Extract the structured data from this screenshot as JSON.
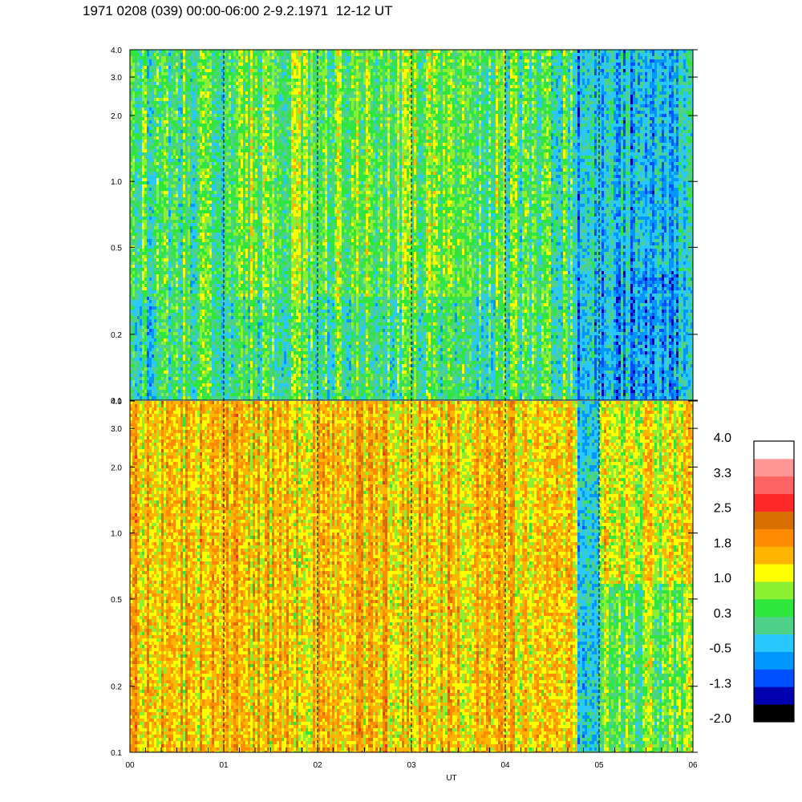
{
  "title": "1971 0208 (039) 00:00-06:00 2-9.2.1971  12-12 UT",
  "chart_data": [
    {
      "type": "heatmap",
      "panel": "top",
      "y_scale": "log",
      "ylim": [
        0.1,
        4.0
      ],
      "yticks": [
        "0.1",
        "0.2",
        "0.5",
        "1.0",
        "2.0",
        "3.0",
        "4.0"
      ],
      "y_values": [
        0.1,
        0.2,
        0.5,
        1.0,
        2.0,
        3.0,
        4.0
      ],
      "xlim": [
        0,
        6
      ],
      "typical_level": 0.3,
      "regions": [
        {
          "x": [
            4.75,
            6.0
          ],
          "y": [
            0.1,
            0.4
          ],
          "level": -0.6
        },
        {
          "x": [
            4.75,
            6.0
          ],
          "y": [
            0.4,
            4.0
          ],
          "level": -0.4
        },
        {
          "x": [
            0.0,
            0.3
          ],
          "y": [
            0.1,
            0.3
          ],
          "level": -0.1
        },
        {
          "x": [
            1.0,
            4.0
          ],
          "y": [
            0.3,
            4.0
          ],
          "level": 0.6
        }
      ]
    },
    {
      "type": "heatmap",
      "panel": "bottom",
      "y_scale": "log",
      "ylim": [
        0.1,
        4.0
      ],
      "yticks": [
        "0.1",
        "0.2",
        "0.5",
        "1.0",
        "2.0",
        "3.0",
        "4.0"
      ],
      "y_values": [
        0.1,
        0.2,
        0.5,
        1.0,
        2.0,
        3.0,
        4.0
      ],
      "xlim": [
        0,
        6
      ],
      "xticks": [
        "00",
        "01",
        "02",
        "03",
        "04",
        "05",
        "06"
      ],
      "x_values": [
        0,
        1,
        2,
        3,
        4,
        5,
        6
      ],
      "xlabel": "UT",
      "typical_level": 1.5,
      "regions": [
        {
          "x": [
            4.75,
            5.0
          ],
          "y": [
            0.1,
            4.0
          ],
          "level": 0.0
        },
        {
          "x": [
            5.0,
            6.0
          ],
          "y": [
            0.1,
            0.6
          ],
          "level": 0.6
        },
        {
          "x": [
            5.0,
            6.0
          ],
          "y": [
            0.6,
            4.0
          ],
          "level": 1.2
        }
      ]
    }
  ],
  "colorbar": {
    "labels": [
      "4.0",
      "3.3",
      "2.5",
      "1.8",
      "1.0",
      "0.3",
      "-0.5",
      "-1.3",
      "-2.0"
    ],
    "min": -2.0,
    "max": 4.0,
    "colors": [
      "#000000",
      "#0000b0",
      "#0050ff",
      "#0096ff",
      "#28c8ff",
      "#4ed28a",
      "#2ee63c",
      "#8cf032",
      "#ffff00",
      "#ffb400",
      "#ff8c00",
      "#d86e00",
      "#ff2828",
      "#ff6464",
      "#ff9696",
      "#ffffff"
    ]
  }
}
